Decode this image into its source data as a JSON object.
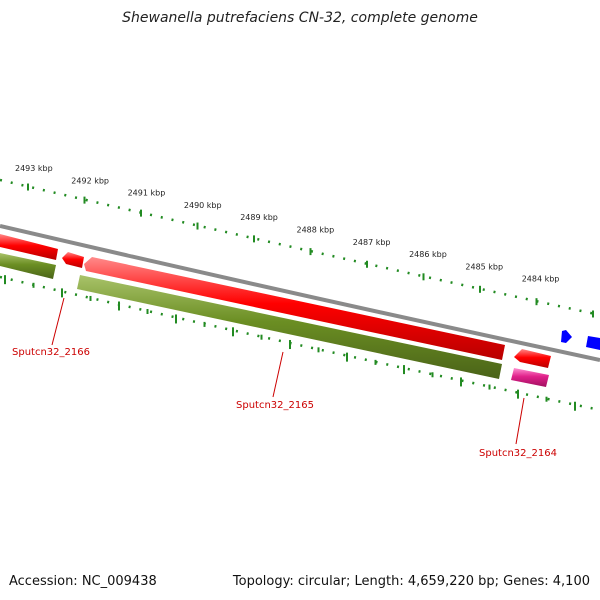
{
  "title": "Shewanella putrefaciens CN-32, complete genome",
  "footer": {
    "accession": "Accession: NC_009438",
    "summary": "Topology: circular; Length: 4,659,220 bp; Genes: 4,100"
  },
  "ruler": {
    "labels": [
      "2493 kbp",
      "2492 kbp",
      "2491 kbp",
      "2490 kbp",
      "2489 kbp",
      "2488 kbp",
      "2487 kbp",
      "2486 kbp",
      "2485 kbp",
      "2484 kbp"
    ]
  },
  "genes": [
    {
      "label": "Sputcn32_2166"
    },
    {
      "label": "Sputcn32_2165"
    },
    {
      "label": "Sputcn32_2164"
    }
  ],
  "colors": {
    "backbone": "#808080",
    "cds": "#ff0000",
    "gene_track": "#6b8e23",
    "ncrna": "#e0218a",
    "other_feature": "#0000ff",
    "ticks": "#228b22",
    "label_red": "#cc0000"
  }
}
